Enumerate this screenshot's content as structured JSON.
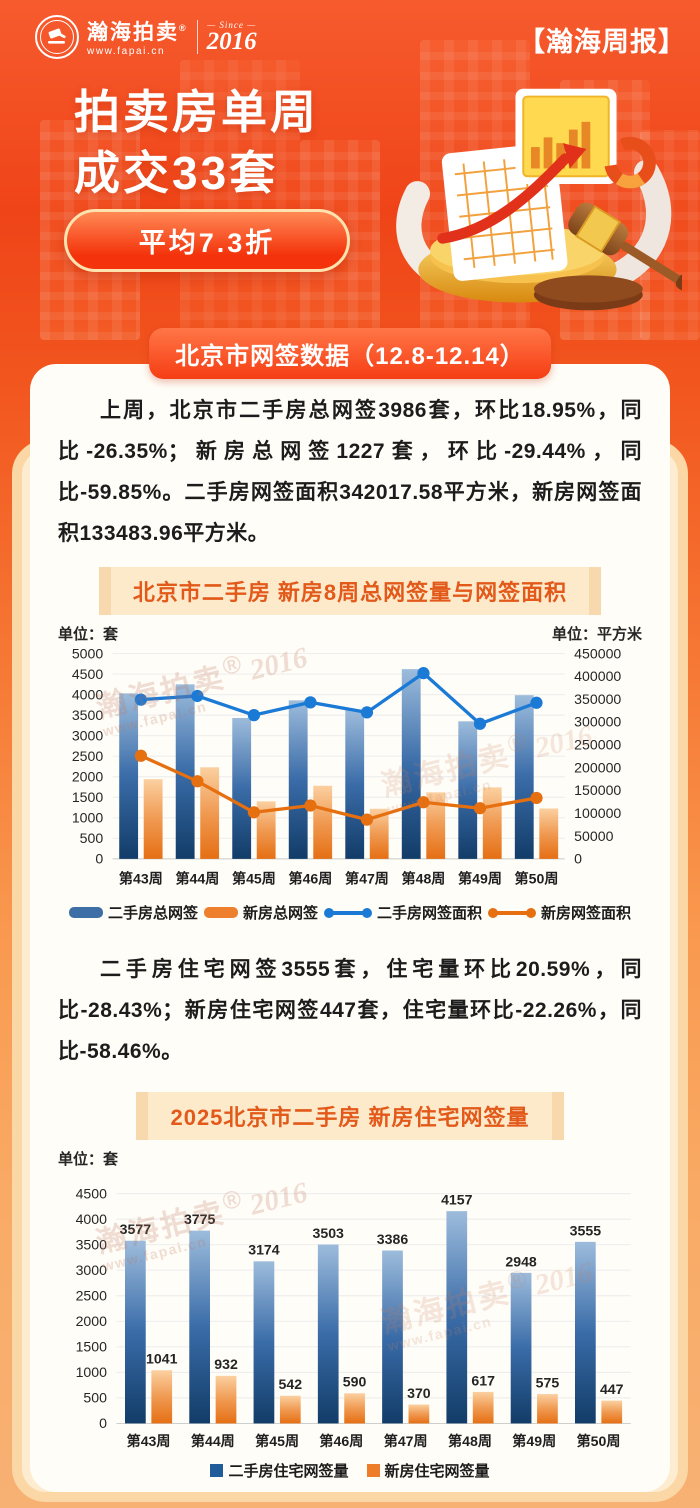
{
  "header": {
    "logo": {
      "name": "瀚海拍卖",
      "reg": "®",
      "url": "www.fapai.cn",
      "since": "— Since —",
      "year": "2016"
    },
    "report_tag": "【瀚海周报】",
    "title_line1": "拍卖房单周",
    "title_line2": "成交33套",
    "badge": "平均7.3折"
  },
  "banner": {
    "text": "北京市网签数据（12.8-12.14）"
  },
  "intro": {
    "text": "上周，北京市二手房总网签3986套，环比18.95%，同比-26.35%；新房总网签1227套，环比-29.44%，同比-59.85%。二手房网签面积342017.58平方米，新房网签面积133483.96平方米。"
  },
  "section2": {
    "text": "二手房住宅网签3555套，住宅量环比20.59%，同比-28.43%；新房住宅网签447套，住宅量环比-22.26%，同比-58.46%。"
  },
  "watermark": {
    "name": "瀚海拍卖",
    "reg": "®",
    "year": "2016",
    "url": "www.fapai.cn"
  },
  "chart_data": [
    {
      "type": "bar",
      "subtype": "combo-bar-line-dual-axis",
      "title": "北京市二手房 新房8周总网签量与网签面积",
      "unit_left": "单位：套",
      "unit_right": "单位：平方米",
      "categories": [
        "第43周",
        "第44周",
        "第45周",
        "第46周",
        "第47周",
        "第48周",
        "第49周",
        "第50周"
      ],
      "left_axis": {
        "min": 0,
        "max": 5000,
        "step": 500
      },
      "right_axis": {
        "min": 0,
        "max": 450000,
        "step": 50000
      },
      "grid": true,
      "legend_position": "bottom",
      "series": [
        {
          "name": "二手房总网签",
          "kind": "bar",
          "axis": "left",
          "color": "#3d6fa6",
          "gradient": [
            "#9dbcdc",
            "#3a6ca8",
            "#123c68"
          ],
          "values": [
            4030,
            4250,
            3430,
            3860,
            3620,
            4620,
            3350,
            3986
          ]
        },
        {
          "name": "新房总网签",
          "kind": "bar",
          "axis": "left",
          "color": "#ee7f2d",
          "gradient": [
            "#fbd0a0",
            "#f09a52",
            "#e56f14"
          ],
          "values": [
            1940,
            2230,
            1400,
            1780,
            1220,
            1620,
            1740,
            1227
          ]
        },
        {
          "name": "二手房网签面积",
          "kind": "line",
          "axis": "right",
          "color": "#1a7ad6",
          "values": [
            349000,
            357000,
            315000,
            343000,
            321000,
            407000,
            296000,
            342017.58
          ]
        },
        {
          "name": "新房网签面积",
          "kind": "line",
          "axis": "right",
          "color": "#e66f10",
          "values": [
            226000,
            170000,
            102000,
            117000,
            86000,
            124000,
            111000,
            133483.96
          ]
        }
      ]
    },
    {
      "type": "bar",
      "title": "2025北京市二手房 新房住宅网签量",
      "unit_left": "单位：套",
      "categories": [
        "第43周",
        "第44周",
        "第45周",
        "第46周",
        "第47周",
        "第48周",
        "第49周",
        "第50周"
      ],
      "y_axis": {
        "min": 0,
        "max": 4500,
        "step": 500
      },
      "grid": true,
      "data_labels": true,
      "legend_position": "bottom",
      "series": [
        {
          "name": "二手房住宅网签量",
          "kind": "bar",
          "color": "#1f5c99",
          "gradient": [
            "#9dbcdc",
            "#3a6ca8",
            "#123c68"
          ],
          "values": [
            3577,
            3775,
            3174,
            3503,
            3386,
            4157,
            2948,
            3555
          ]
        },
        {
          "name": "新房住宅网签量",
          "kind": "bar",
          "color": "#ee7d2a",
          "gradient": [
            "#fbd0a0",
            "#f09a52",
            "#e56f14"
          ],
          "values": [
            1041,
            932,
            542,
            590,
            370,
            617,
            575,
            447
          ]
        }
      ]
    }
  ]
}
